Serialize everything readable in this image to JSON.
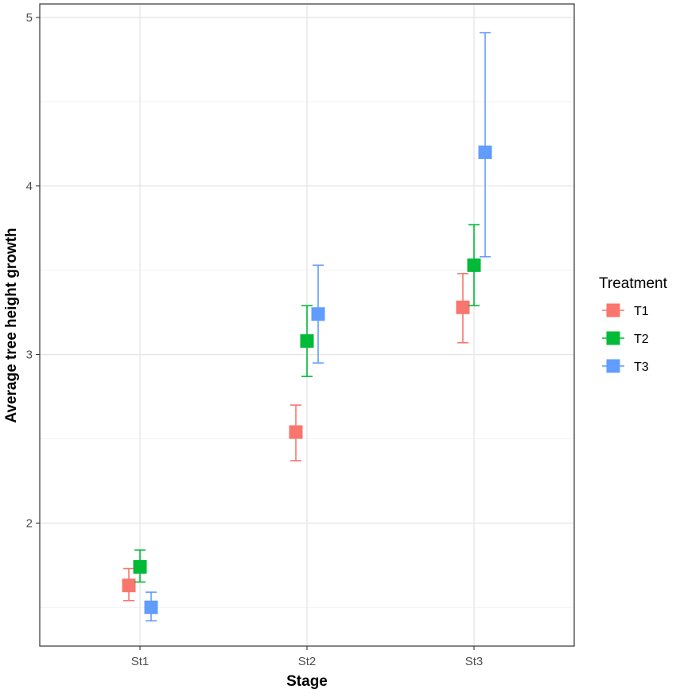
{
  "chart_data": {
    "type": "scatter",
    "subtype": "point-with-errorbars",
    "title": "",
    "xlabel": "Stage",
    "ylabel": "Average tree height growth",
    "categories": [
      "St1",
      "St2",
      "St3"
    ],
    "ylim": [
      1.27,
      5.08
    ],
    "yticks": [
      2,
      3,
      4,
      5
    ],
    "grid": true,
    "legend": {
      "title": "Treatment",
      "position": "right"
    },
    "series": [
      {
        "name": "T1",
        "color": "#F8766D",
        "values": [
          1.63,
          2.54,
          3.28
        ],
        "lower": [
          1.54,
          2.37,
          3.07
        ],
        "upper": [
          1.73,
          2.7,
          3.48
        ]
      },
      {
        "name": "T2",
        "color": "#00BA38",
        "values": [
          1.74,
          3.08,
          3.53
        ],
        "lower": [
          1.65,
          2.87,
          3.29
        ],
        "upper": [
          1.84,
          3.29,
          3.77
        ]
      },
      {
        "name": "T3",
        "color": "#619CFF",
        "values": [
          1.5,
          3.24,
          4.2
        ],
        "lower": [
          1.42,
          2.95,
          3.58
        ],
        "upper": [
          1.59,
          3.53,
          4.91
        ]
      }
    ]
  }
}
